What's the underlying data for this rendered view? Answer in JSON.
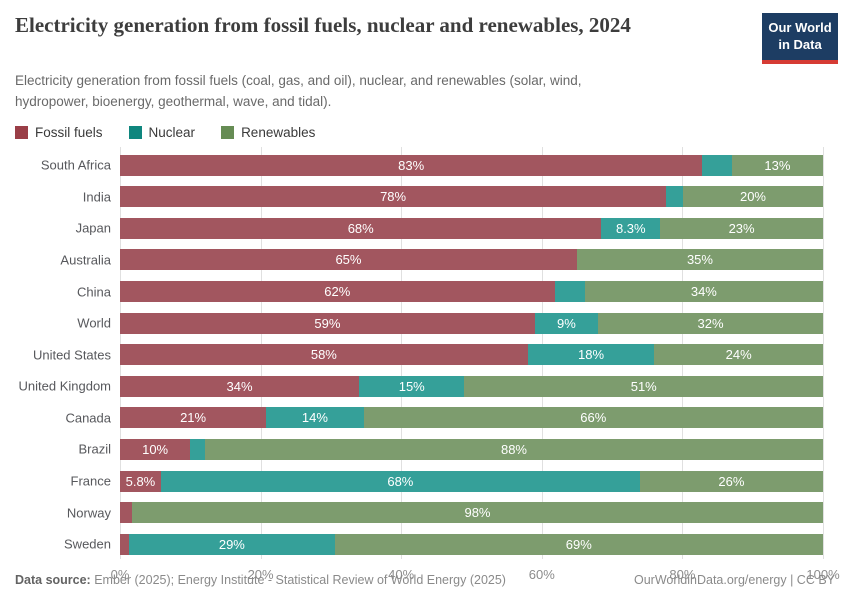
{
  "header": {
    "title": "Electricity generation from fossil fuels, nuclear and renewables, 2024",
    "subtitle": "Electricity generation from fossil fuels (coal, gas, and oil), nuclear, and renewables (solar, wind, hydropower, bioenergy, geothermal, wave, and tidal).",
    "logo": {
      "line1": "Our World",
      "line2": "in Data",
      "bg_color": "#1d3d63",
      "accent_color": "#d63b34"
    }
  },
  "chart_data": {
    "type": "bar",
    "stacked": true,
    "orientation": "horizontal",
    "title": "Electricity generation from fossil fuels, nuclear and renewables, 2024",
    "categories": [
      "South Africa",
      "India",
      "Japan",
      "Australia",
      "China",
      "World",
      "United States",
      "United Kingdom",
      "Canada",
      "Brazil",
      "France",
      "Norway",
      "Sweden"
    ],
    "series": [
      {
        "name": "Fossil fuels",
        "color": "#a2565f",
        "legend_color": "#9a3e47",
        "values": [
          83,
          78,
          68,
          65,
          62,
          59,
          58,
          34,
          21,
          10,
          5.8,
          1.7,
          1.3
        ],
        "labels": [
          "83%",
          "78%",
          "68%",
          "65%",
          "62%",
          "59%",
          "58%",
          "34%",
          "21%",
          "10%",
          "5.8%",
          "",
          ""
        ]
      },
      {
        "name": "Nuclear",
        "color": "#35a099",
        "legend_color": "#0f867e",
        "values": [
          4.2,
          2.4,
          8.3,
          0,
          4.3,
          9,
          18,
          15,
          14,
          2.1,
          68,
          0,
          29
        ],
        "labels": [
          "",
          "",
          "8.3%",
          "",
          "",
          "9%",
          "18%",
          "15%",
          "14%",
          "",
          "68%",
          "",
          "29%"
        ]
      },
      {
        "name": "Renewables",
        "color": "#7d9c6e",
        "legend_color": "#668c54",
        "values": [
          13,
          20,
          23,
          35,
          34,
          32,
          24,
          51,
          66,
          88,
          26,
          98,
          69
        ],
        "labels": [
          "13%",
          "20%",
          "23%",
          "35%",
          "34%",
          "32%",
          "24%",
          "51%",
          "66%",
          "88%",
          "26%",
          "98%",
          "69%"
        ]
      }
    ],
    "x_axis": {
      "tick_values": [
        0,
        20,
        40,
        60,
        80,
        100
      ],
      "tick_labels": [
        "0%",
        "20%",
        "40%",
        "60%",
        "80%",
        "100%"
      ],
      "max": 100
    },
    "grid": true,
    "legend_position": "top"
  },
  "footer": {
    "source_label": "Data source:",
    "source_text": " Ember (2025); Energy Institute - Statistical Review of World Energy (2025)",
    "credit": "OurWorldinData.org/energy | CC BY"
  }
}
